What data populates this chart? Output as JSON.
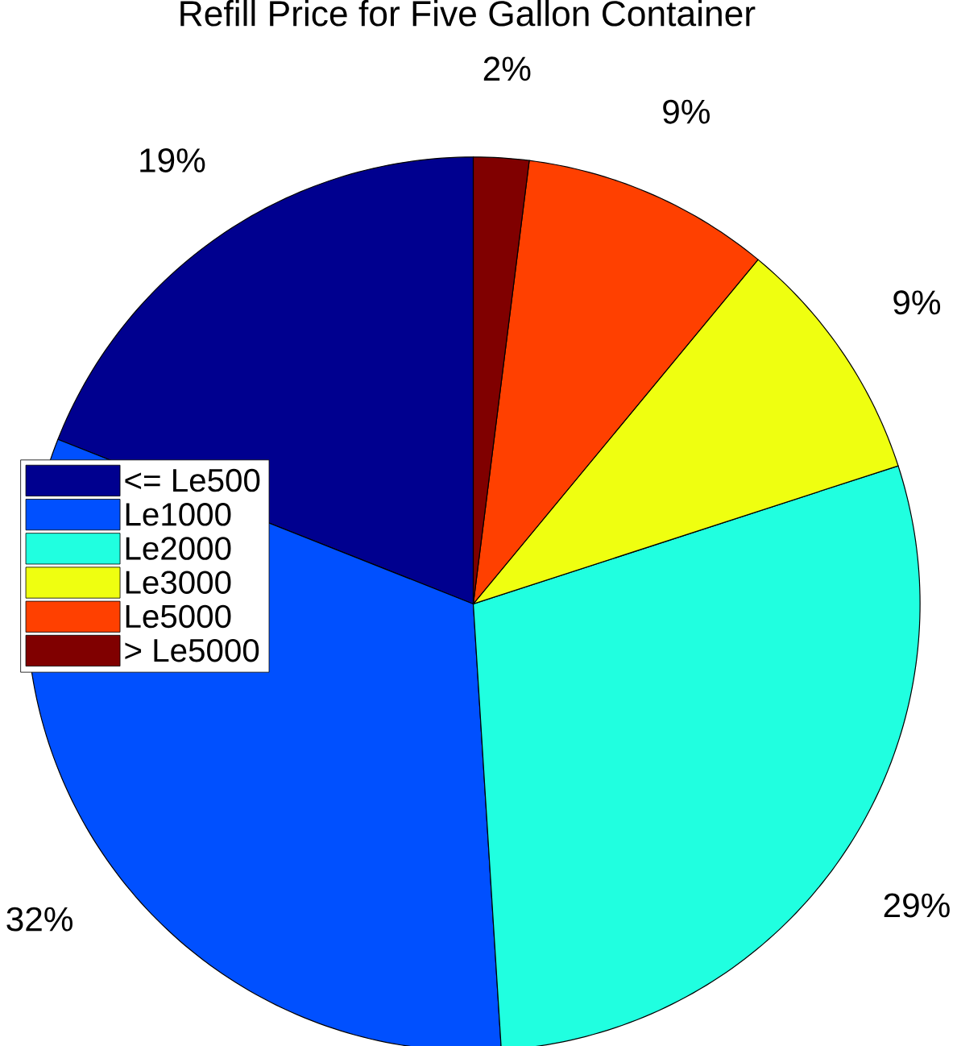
{
  "chart_data": {
    "type": "pie",
    "title": "Refill Price for Five Gallon Container",
    "categories": [
      "<= Le500",
      "Le1000",
      "Le2000",
      "Le3000",
      "Le5000",
      "> Le5000"
    ],
    "values": [
      19,
      32,
      29,
      9,
      9,
      2
    ],
    "value_labels": [
      "19%",
      "32%",
      "29%",
      "9%",
      "9%",
      "2%"
    ],
    "colors": [
      "#00008f",
      "#0050ff",
      "#20ffe0",
      "#efff10",
      "#ff4000",
      "#800000"
    ],
    "legend": "left"
  }
}
